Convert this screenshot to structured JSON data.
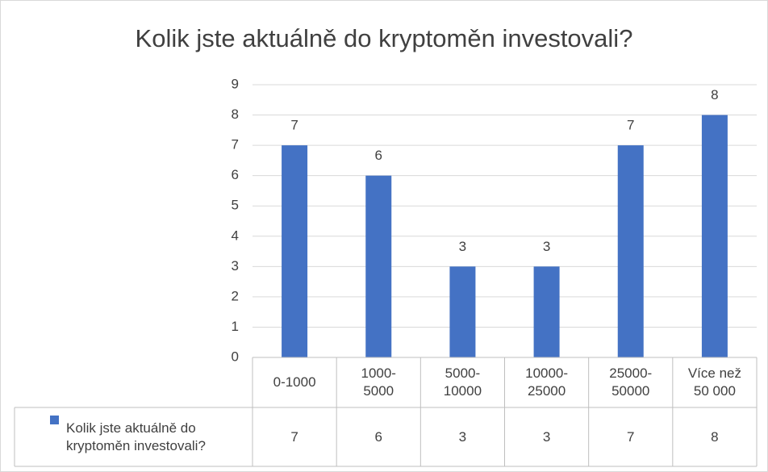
{
  "chart_data": {
    "type": "bar",
    "title": "Kolik jste aktuálně do kryptoměn investovali?",
    "categories": [
      "0-1000",
      "1000-\n5000",
      "5000-\n10000",
      "10000-\n25000",
      "25000-\n50000",
      "Více než\n50 000"
    ],
    "series": [
      {
        "name": "Kolik jste aktuálně do kryptoměn investovali?",
        "color": "#4472c4",
        "values": [
          7,
          6,
          3,
          3,
          7,
          8
        ]
      }
    ],
    "ylim": [
      0,
      9
    ],
    "yticks": [
      0,
      1,
      2,
      3,
      4,
      5,
      6,
      7,
      8,
      9
    ],
    "grid": true,
    "data_table": true
  }
}
